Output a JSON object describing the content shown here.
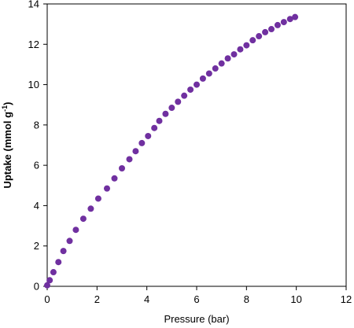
{
  "chart_data": {
    "type": "scatter",
    "title": "",
    "xlabel": "Pressure (bar)",
    "ylabel": {
      "base": "Uptake (mmol g",
      "superscript": "-1",
      "close": ")"
    },
    "xlim": [
      0,
      12
    ],
    "ylim": [
      0,
      14
    ],
    "xticks": [
      0,
      2,
      4,
      6,
      8,
      10,
      12
    ],
    "yticks": [
      0,
      2,
      4,
      6,
      8,
      10,
      12,
      14
    ],
    "grid": false,
    "legend": "none",
    "marker_color": "#7030A0",
    "series": [
      {
        "x": [
          0.0,
          0.1,
          0.25,
          0.45,
          0.65,
          0.9,
          1.15,
          1.45,
          1.75,
          2.05,
          2.4,
          2.7,
          3.0,
          3.3,
          3.55,
          3.8,
          4.05,
          4.3,
          4.5,
          4.75,
          5.0,
          5.25,
          5.5,
          5.75,
          6.0,
          6.25,
          6.5,
          6.75,
          7.0,
          7.25,
          7.5,
          7.75,
          8.0,
          8.25,
          8.5,
          8.75,
          9.0,
          9.25,
          9.5,
          9.75,
          9.95
        ],
        "y": [
          0.05,
          0.3,
          0.7,
          1.2,
          1.75,
          2.25,
          2.8,
          3.35,
          3.85,
          4.35,
          4.85,
          5.35,
          5.85,
          6.3,
          6.7,
          7.1,
          7.45,
          7.85,
          8.2,
          8.55,
          8.85,
          9.15,
          9.45,
          9.75,
          10.0,
          10.3,
          10.55,
          10.8,
          11.05,
          11.3,
          11.5,
          11.75,
          11.95,
          12.2,
          12.4,
          12.6,
          12.75,
          12.95,
          13.1,
          13.25,
          13.35
        ]
      }
    ]
  }
}
